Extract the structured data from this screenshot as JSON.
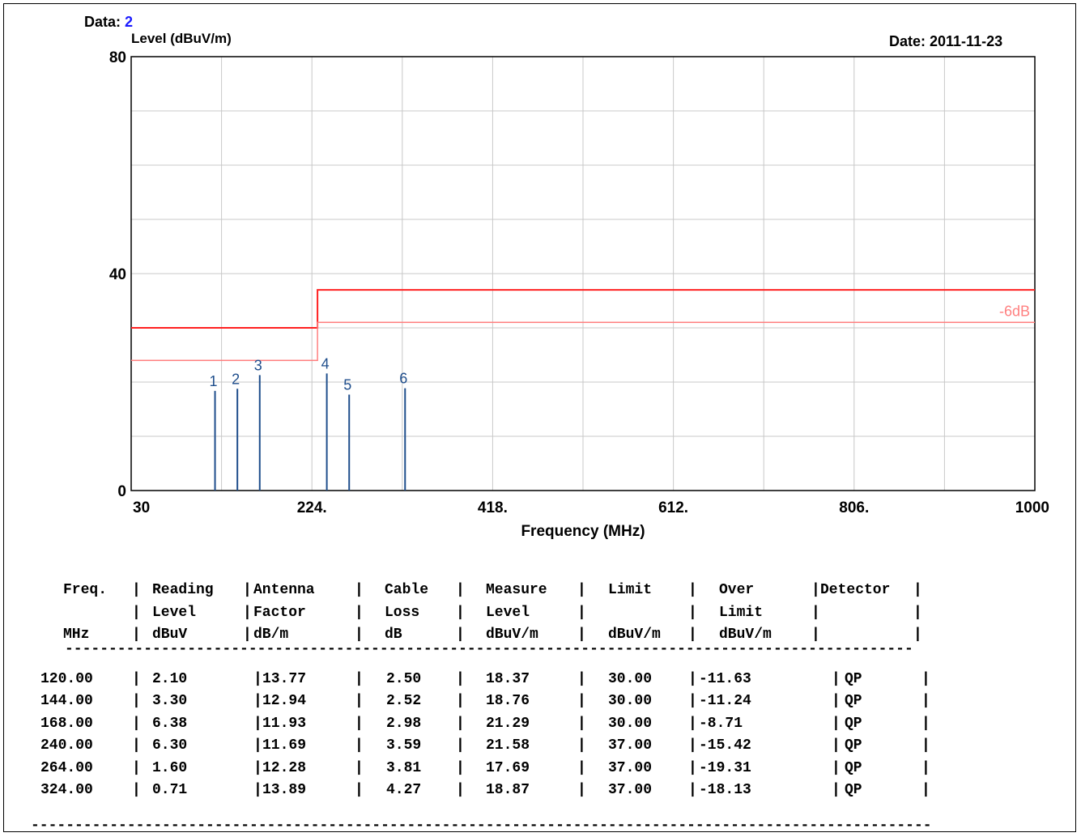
{
  "header": {
    "data_label": "Data:",
    "data_value": "2",
    "date": "Date: 2011-11-23"
  },
  "chart_data": {
    "type": "line",
    "ylabel": "Level (dBuV/m)",
    "xlabel": "Frequency (MHz)",
    "xlim": [
      30,
      1000
    ],
    "ylim": [
      0,
      80
    ],
    "y_tick_labels": [
      {
        "value": 0,
        "label": "0"
      },
      {
        "value": 40,
        "label": "40"
      },
      {
        "value": 80,
        "label": "80"
      }
    ],
    "x_tick_labels": [
      {
        "value": 30,
        "label": "30"
      },
      {
        "value": 224,
        "label": "224."
      },
      {
        "value": 418,
        "label": "418."
      },
      {
        "value": 612,
        "label": "612."
      },
      {
        "value": 806,
        "label": "806."
      },
      {
        "value": 1000,
        "label": "1000"
      }
    ],
    "grid": true,
    "series": [
      {
        "kind": "limit",
        "color": "#ff2020",
        "points": [
          [
            30,
            30
          ],
          [
            230,
            30
          ],
          [
            230,
            37
          ],
          [
            1000,
            37
          ]
        ]
      },
      {
        "kind": "margin",
        "name": "-6dB",
        "color": "#ff8080",
        "points": [
          [
            30,
            24
          ],
          [
            230,
            24
          ],
          [
            230,
            31
          ],
          [
            1000,
            31
          ]
        ]
      }
    ],
    "markers": {
      "color": "#1f4e8c",
      "items": [
        {
          "label": "1",
          "x": 120,
          "y": 18.37
        },
        {
          "label": "2",
          "x": 144,
          "y": 18.76
        },
        {
          "label": "3",
          "x": 168,
          "y": 21.29
        },
        {
          "label": "4",
          "x": 240,
          "y": 21.58
        },
        {
          "label": "5",
          "x": 264,
          "y": 17.69
        },
        {
          "label": "6",
          "x": 324,
          "y": 18.87
        }
      ]
    }
  },
  "table": {
    "header_lines": [
      [
        "Freq.",
        "Reading",
        "Antenna",
        "Cable",
        "Measure",
        "Limit",
        "Over",
        "Detector"
      ],
      [
        "",
        "Level",
        "Factor",
        "Loss",
        "Level",
        "",
        "Limit",
        ""
      ],
      [
        "MHz",
        "dBuV",
        "dB/m",
        "dB",
        "dBuV/m",
        "dBuV/m",
        "dBuV/m",
        ""
      ]
    ],
    "rows": [
      [
        "120.00",
        "2.10",
        "13.77",
        "2.50",
        "18.37",
        "30.00",
        "-11.63",
        "QP"
      ],
      [
        "144.00",
        "3.30",
        "12.94",
        "2.52",
        "18.76",
        "30.00",
        "-11.24",
        "QP"
      ],
      [
        "168.00",
        "6.38",
        "11.93",
        "2.98",
        "21.29",
        "30.00",
        "-8.71",
        "QP"
      ],
      [
        "240.00",
        "6.30",
        "11.69",
        "3.59",
        "21.58",
        "37.00",
        "-15.42",
        "QP"
      ],
      [
        "264.00",
        "1.60",
        "12.28",
        "3.81",
        "17.69",
        "37.00",
        "-19.31",
        "QP"
      ],
      [
        "324.00",
        "0.71",
        "13.89",
        "4.27",
        "18.87",
        "37.00",
        "-18.13",
        "QP"
      ]
    ]
  }
}
